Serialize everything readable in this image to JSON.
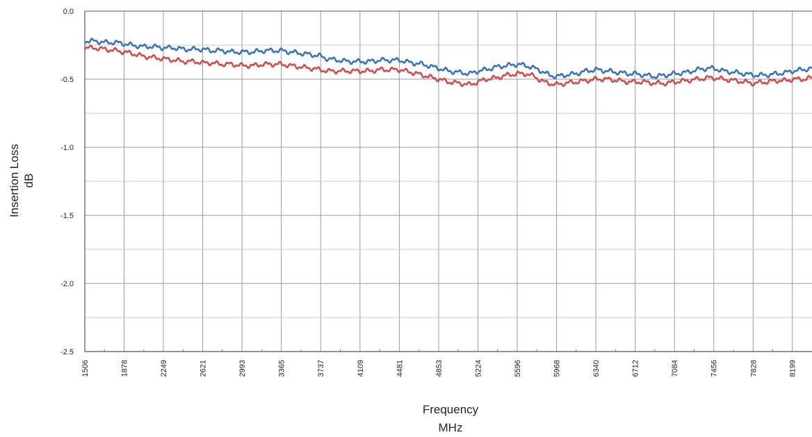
{
  "chart_data": {
    "type": "line",
    "title": "",
    "xlabel_lines": [
      "Frequency",
      "MHz"
    ],
    "ylabel_lines": [
      "Insertion Loss",
      "dB"
    ],
    "x_tick_labels": [
      "1506",
      "1878",
      "2249",
      "2621",
      "2993",
      "3365",
      "3737",
      "4109",
      "4481",
      "4853",
      "5224",
      "5596",
      "5968",
      "6340",
      "6712",
      "7084",
      "7456",
      "7828",
      "8199"
    ],
    "xlim": [
      1506,
      8385
    ],
    "y_tick_labels": [
      "0.0",
      "-0.5",
      "-1.0",
      "-1.5",
      "-2.0",
      "-2.5"
    ],
    "y_ticks": [
      0.0,
      -0.5,
      -1.0,
      -1.5,
      -2.0,
      -2.5
    ],
    "y_minor_ticks": [
      -0.25,
      -0.75,
      -1.25,
      -1.75,
      -2.25
    ],
    "ylim": [
      -2.5,
      0.0
    ],
    "grid": true,
    "legend": "none",
    "series": [
      {
        "color": "#3a73b8",
        "x": [
          1506,
          1600,
          1700,
          1800,
          1878,
          1950,
          2050,
          2150,
          2249,
          2350,
          2450,
          2550,
          2621,
          2700,
          2800,
          2900,
          2993,
          3100,
          3200,
          3300,
          3365,
          3450,
          3550,
          3650,
          3737,
          3800,
          3900,
          4000,
          4109,
          4200,
          4300,
          4400,
          4481,
          4600,
          4700,
          4800,
          4853,
          4950,
          5050,
          5150,
          5224,
          5300,
          5400,
          5500,
          5596,
          5680,
          5760,
          5800,
          5850,
          5900,
          5968,
          6050,
          6150,
          6250,
          6340,
          6450,
          6550,
          6650,
          6712,
          6800,
          6900,
          7000,
          7084,
          7200,
          7300,
          7400,
          7456,
          7550,
          7650,
          7750,
          7828,
          7950,
          8050,
          8150,
          8199,
          8300,
          8385
        ],
        "y": [
          -0.22,
          -0.22,
          -0.23,
          -0.23,
          -0.24,
          -0.25,
          -0.26,
          -0.26,
          -0.27,
          -0.27,
          -0.28,
          -0.28,
          -0.28,
          -0.29,
          -0.29,
          -0.3,
          -0.3,
          -0.3,
          -0.29,
          -0.29,
          -0.29,
          -0.3,
          -0.31,
          -0.32,
          -0.33,
          -0.35,
          -0.36,
          -0.37,
          -0.37,
          -0.37,
          -0.36,
          -0.36,
          -0.36,
          -0.38,
          -0.39,
          -0.41,
          -0.42,
          -0.44,
          -0.45,
          -0.46,
          -0.44,
          -0.43,
          -0.41,
          -0.4,
          -0.39,
          -0.4,
          -0.42,
          -0.43,
          -0.45,
          -0.47,
          -0.48,
          -0.47,
          -0.46,
          -0.44,
          -0.43,
          -0.44,
          -0.45,
          -0.46,
          -0.46,
          -0.47,
          -0.48,
          -0.47,
          -0.46,
          -0.45,
          -0.43,
          -0.42,
          -0.42,
          -0.44,
          -0.45,
          -0.46,
          -0.47,
          -0.47,
          -0.46,
          -0.45,
          -0.44,
          -0.43,
          -0.42
        ],
        "jitter": 0.012
      },
      {
        "color": "#d34b4b",
        "x": [
          1506,
          1600,
          1700,
          1800,
          1878,
          1950,
          2050,
          2150,
          2249,
          2350,
          2450,
          2550,
          2621,
          2700,
          2800,
          2900,
          2993,
          3100,
          3200,
          3300,
          3365,
          3450,
          3550,
          3650,
          3737,
          3800,
          3900,
          4000,
          4109,
          4200,
          4300,
          4400,
          4481,
          4600,
          4700,
          4800,
          4853,
          4950,
          5050,
          5150,
          5224,
          5300,
          5400,
          5500,
          5596,
          5680,
          5760,
          5800,
          5850,
          5900,
          5968,
          6050,
          6150,
          6250,
          6340,
          6450,
          6550,
          6650,
          6712,
          6800,
          6900,
          7000,
          7084,
          7200,
          7300,
          7400,
          7456,
          7550,
          7650,
          7750,
          7828,
          7950,
          8050,
          8150,
          8199,
          8300,
          8385
        ],
        "y": [
          -0.27,
          -0.27,
          -0.28,
          -0.29,
          -0.3,
          -0.31,
          -0.33,
          -0.34,
          -0.35,
          -0.36,
          -0.37,
          -0.37,
          -0.38,
          -0.38,
          -0.39,
          -0.39,
          -0.4,
          -0.4,
          -0.39,
          -0.39,
          -0.39,
          -0.4,
          -0.41,
          -0.42,
          -0.43,
          -0.44,
          -0.44,
          -0.44,
          -0.44,
          -0.44,
          -0.43,
          -0.43,
          -0.43,
          -0.45,
          -0.47,
          -0.49,
          -0.5,
          -0.52,
          -0.53,
          -0.54,
          -0.52,
          -0.5,
          -0.49,
          -0.47,
          -0.46,
          -0.46,
          -0.48,
          -0.5,
          -0.52,
          -0.53,
          -0.54,
          -0.53,
          -0.52,
          -0.51,
          -0.5,
          -0.5,
          -0.51,
          -0.52,
          -0.52,
          -0.52,
          -0.53,
          -0.53,
          -0.52,
          -0.51,
          -0.5,
          -0.49,
          -0.49,
          -0.5,
          -0.51,
          -0.52,
          -0.53,
          -0.52,
          -0.51,
          -0.51,
          -0.5,
          -0.5,
          -0.49
        ],
        "jitter": 0.012
      }
    ]
  }
}
